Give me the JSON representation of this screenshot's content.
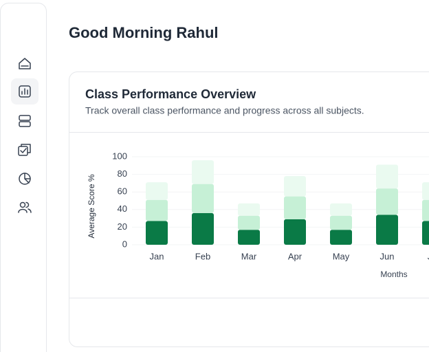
{
  "header": {
    "title": "Good Morning Rahul"
  },
  "card": {
    "title": "Class Performance Overview",
    "subtitle": "Track overall class performance and progress across all subjects."
  },
  "chart_data": {
    "type": "stacked-bar",
    "y_label": "Average Score %",
    "x_label": "Months",
    "categories": [
      "Jan",
      "Feb",
      "Mar",
      "Apr",
      "May",
      "Jun",
      "Jul"
    ],
    "series": [
      {
        "color": "#0a7a46",
        "values": [
          27,
          36,
          17,
          29,
          17,
          34,
          27
        ]
      },
      {
        "color": "#c6f0d6",
        "values": [
          24,
          33,
          16,
          26,
          16,
          30,
          24
        ]
      },
      {
        "color": "#eafaf0",
        "values": [
          20,
          27,
          14,
          23,
          14,
          27,
          20
        ]
      }
    ],
    "ylim": [
      0,
      100
    ],
    "yticks": [
      0,
      20,
      40,
      60,
      80,
      100
    ],
    "grid": true
  }
}
